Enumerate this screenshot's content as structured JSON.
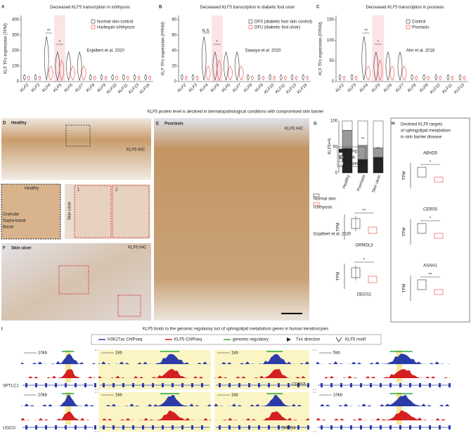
{
  "panels": {
    "A": {
      "letter": "A",
      "title_pre": "Decreased ",
      "title_gene": "KLF5",
      "title_post": " transcription in ichthyosis",
      "ylabel": "KLF TFs expression (TPM)",
      "yticks": [
        "0",
        "100",
        "200",
        "300",
        "400"
      ],
      "categories": [
        "KLF2",
        "KLF3",
        "KLF4",
        "KLF5",
        "KLF6",
        "KLF7",
        "KLF8",
        "KLF9",
        "KLF10",
        "KLF11",
        "KLF13",
        "KLF16"
      ],
      "legend": [
        "Normal skin control",
        "Harlequin ichthyosis"
      ],
      "citation": "Enjalbert et al. 2020",
      "sig": [
        "**",
        "*"
      ]
    },
    "B": {
      "letter": "B",
      "title_pre": "Decreased ",
      "title_gene": "KLF5",
      "title_post": " transcription in diabetic foot ulcer",
      "ylabel": "KLF TFs expression (FPKM)",
      "yticks": [
        "0",
        "20",
        "40",
        "60",
        "80"
      ],
      "categories": [
        "KLF2",
        "KLF3",
        "KLF4",
        "KLF5",
        "KLF6",
        "KLF7",
        "KLF8",
        "KLF9",
        "KLF10",
        "KLF11",
        "KLF13",
        "KLF16"
      ],
      "legend": [
        "DFS (diabetic foot skin control)",
        "DFU (diabetic foot ulcer)"
      ],
      "citation": "Sawaya et al. 2020",
      "sig": [
        "N.S.",
        "*"
      ]
    },
    "C": {
      "letter": "C",
      "title_pre": "Decreased ",
      "title_gene": "KLF5",
      "title_post": " transcription in psoriasis",
      "ylabel": "KLF TFs expression (FPKM)",
      "yticks": [
        "0",
        "50",
        "100",
        "150"
      ],
      "categories": [
        "KLF2",
        "KLF3",
        "KLF4",
        "KLF5",
        "KLF6",
        "KLF7",
        "KLF8",
        "KLF9",
        "KLF10",
        "KLF11",
        "KLF13"
      ],
      "legend": [
        "Control",
        "Psoriasis"
      ],
      "citation": "Ahn et al. 2018",
      "sig": [
        "**",
        "*"
      ]
    }
  },
  "heading": "KLF5 protein level is declined in dermatopathological conditions with compromised skin barrier",
  "D": {
    "letter": "D",
    "label": "Healthy",
    "stain": "KLF5 IHC",
    "inset_label": "Healthy",
    "layers": [
      "Granular",
      "Supra-basal",
      "Basal"
    ],
    "side_label": "Skin ulcer",
    "boxes": [
      "1",
      "2"
    ]
  },
  "E": {
    "letter": "E",
    "label": "Psoriasis",
    "stain": "KLF5 IHC"
  },
  "F": {
    "letter": "F",
    "label": "Skin ulcer",
    "stain": "KLF5 IHC"
  },
  "G": {
    "letter": "G",
    "ylabel": "KLF5+%",
    "yticks": [
      "0",
      "50",
      "100"
    ],
    "legend": [
      "Strong",
      "Weak",
      "Negative"
    ],
    "categories": [
      "Healthy",
      "Psoriasis",
      "Skin ulcer"
    ],
    "sig": [
      "**",
      "**"
    ],
    "box_legend": [
      "Normal skin",
      "Ichthyosis"
    ],
    "citation": "Enjalbert et al. 2020",
    "plots": [
      {
        "gene": "ORMDL3",
        "ylabel": "TPM",
        "sig": "**"
      },
      {
        "gene": "DEGS1",
        "ylabel": "TPM",
        "sig": "*"
      }
    ]
  },
  "H": {
    "letter": "H",
    "title": [
      "Declined KLF5 targets",
      "of sphingolipid metabolism",
      "in skin barrier disease"
    ],
    "plots": [
      {
        "gene": "ABHD5",
        "ylabel": "TPM",
        "sig": "*"
      },
      {
        "gene": "CERS5",
        "ylabel": "TPM",
        "sig": "*"
      },
      {
        "gene": "ASAH1",
        "ylabel": "TPM",
        "sig": "**"
      }
    ]
  },
  "I": {
    "letter": "I",
    "title": "KLF5 binds to the genomic regulatory loci of sphingolipid metabolism genes in human keratinocytes",
    "legend": [
      "H3K27ac ChIPseq",
      "KLF5 ChIPseq",
      "genomic regulatory",
      "Txn direction",
      "KLF5 motif"
    ],
    "genes": [
      "SPTLC1",
      "UGCG",
      "CERS5",
      "SMPD4"
    ],
    "scales": [
      "10kb",
      "1kb",
      "1kb",
      "5kb",
      "10kb",
      "1kb",
      "1kb",
      "10kb"
    ]
  }
}
